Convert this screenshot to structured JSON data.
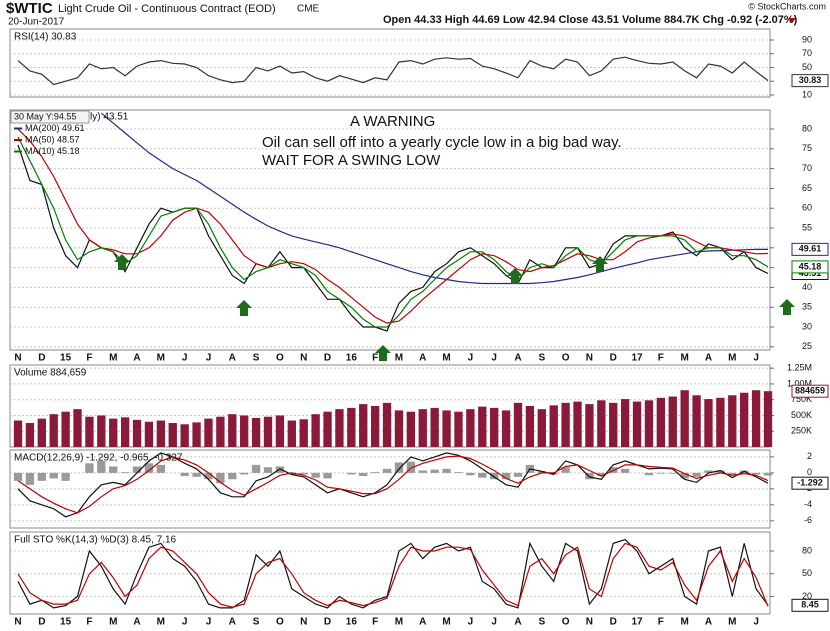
{
  "header": {
    "symbol": "$WTIC",
    "name": "Light Crude Oil - Continuous Contract (EOD)",
    "exchange": "CME",
    "date": "20-Jun-2017",
    "quote": "Open 44.33  High 44.69  Low 42.94  Close 43.51  Volume 884.7K  Chg -0.92 (-2.07%)",
    "credit": "© StockCharts.com"
  },
  "chart_data": [
    {
      "type": "line",
      "title": "RSI(14) 30.83",
      "color": "#333333",
      "label_last": true,
      "values": [
        60,
        45,
        40,
        25,
        30,
        35,
        55,
        48,
        50,
        38,
        52,
        58,
        60,
        56,
        55,
        50,
        38,
        32,
        28,
        30,
        50,
        45,
        52,
        42,
        44,
        35,
        30,
        38,
        33,
        28,
        35,
        32,
        58,
        60,
        55,
        62,
        64,
        62,
        63,
        52,
        48,
        42,
        35,
        60,
        52,
        48,
        62,
        58,
        38,
        45,
        62,
        65,
        60,
        56,
        55,
        58,
        45,
        35,
        55,
        52,
        42,
        58,
        44,
        30.83
      ],
      "ylim": [
        7,
        106
      ],
      "yticks": [
        90,
        70,
        50,
        30,
        10
      ],
      "grid": true
    },
    {
      "type": "line",
      "tooltip": "30 May Y:94.55",
      "annotations": [
        "A WARNING",
        "Oil can sell off into a yearly cycle low in a big bad way.",
        "WAIT FOR A SWING LOW"
      ],
      "categories": [
        "N",
        null,
        "D",
        null,
        "15",
        null,
        "F",
        null,
        "M",
        null,
        "A",
        null,
        "M",
        null,
        "J",
        null,
        "J",
        null,
        "A",
        null,
        "S",
        null,
        "O",
        null,
        "N",
        null,
        "D",
        null,
        "16",
        null,
        "F",
        null,
        "M",
        null,
        "A",
        null,
        "M",
        null,
        "J",
        null,
        "J",
        null,
        "A",
        null,
        "S",
        null,
        "O",
        null,
        "N",
        null,
        "D",
        null,
        "17",
        null,
        "F",
        null,
        "M",
        null,
        "A",
        null,
        "M",
        null,
        "J",
        null
      ],
      "series": [
        {
          "name": "ly) 43.51",
          "color": "#111111",
          "label_last": true,
          "values": [
            76,
            67,
            66,
            55,
            48,
            45,
            52,
            50,
            49,
            44,
            50,
            56,
            60,
            59,
            60,
            60,
            53,
            48,
            43,
            41,
            46,
            45,
            49,
            45,
            45,
            41,
            37,
            37,
            33,
            30,
            30,
            29,
            36,
            39,
            40,
            44,
            46,
            49,
            50,
            48,
            46,
            43,
            41,
            47,
            45,
            45,
            50,
            50,
            45,
            46,
            51,
            53,
            53,
            53,
            53,
            54,
            50,
            48,
            51,
            50,
            47,
            49,
            45,
            43.51
          ]
        },
        {
          "name": "MA(200) 49.61",
          "color": "#1f2a8c",
          "label_last": true,
          "values": [
            null,
            null,
            null,
            null,
            null,
            null,
            null,
            84,
            81.5,
            79,
            76.5,
            74,
            72,
            70,
            68.5,
            67,
            65,
            63,
            61,
            59,
            57.2,
            55.5,
            54.2,
            53,
            52.2,
            51.5,
            50.8,
            50,
            49,
            48,
            47,
            46,
            45,
            44,
            43.2,
            42.5,
            42,
            41.5,
            41.2,
            41,
            41,
            41,
            41,
            41,
            41.2,
            41.5,
            42,
            42.5,
            43.2,
            44,
            44.8,
            45.5,
            46.2,
            47,
            47.5,
            48,
            48.5,
            49,
            49.2,
            49.3,
            49.4,
            49.5,
            49.6,
            49.61
          ]
        },
        {
          "name": "MA(50) 48.57",
          "color": "#c00000",
          "values": [
            80,
            77,
            73,
            68,
            62,
            56,
            52,
            50,
            49.5,
            48.5,
            48.5,
            50,
            53,
            57,
            59,
            60,
            59,
            56,
            52,
            48,
            46,
            45,
            46,
            46.5,
            46,
            44.5,
            42,
            40,
            37.5,
            35,
            32.5,
            31,
            31.5,
            34,
            37,
            39.5,
            42,
            44.5,
            47,
            48.5,
            48,
            46.5,
            44.5,
            44,
            45,
            45.5,
            47,
            48.5,
            48,
            47,
            47,
            49,
            51.5,
            52.5,
            53,
            53.5,
            53,
            51.5,
            50,
            50,
            49.5,
            49,
            48.5,
            48.57
          ]
        },
        {
          "name": "MA(10) 45.18",
          "color": "#008000",
          "label_last": true,
          "values": [
            78,
            72,
            66,
            60,
            52,
            47,
            49,
            50,
            49,
            46,
            48,
            53,
            58,
            59,
            60,
            60,
            56,
            50,
            45,
            42,
            44,
            45,
            47,
            46,
            45,
            43,
            39,
            37,
            35,
            32,
            30,
            30,
            33,
            37,
            39,
            42,
            45,
            47,
            49,
            49,
            47,
            44,
            42,
            45,
            46,
            45,
            48,
            50,
            47,
            46,
            49,
            52,
            53,
            53,
            53,
            53,
            52,
            49,
            50,
            50,
            48,
            48,
            47,
            45.18
          ]
        }
      ],
      "ylim": [
        24.2,
        84.8
      ],
      "yticks": [
        25,
        30,
        35,
        40,
        45,
        50,
        55,
        60,
        65,
        70,
        75,
        80
      ],
      "grid": true
    },
    {
      "type": "bar",
      "title": "Volume 884,659",
      "color": "#8b1a3a",
      "label_last": true,
      "values": [
        420000,
        380000,
        450000,
        520000,
        560000,
        600000,
        480000,
        500000,
        450000,
        470000,
        430000,
        400000,
        420000,
        380000,
        360000,
        390000,
        450000,
        480000,
        520000,
        500000,
        460000,
        480000,
        500000,
        420000,
        440000,
        520000,
        560000,
        600000,
        620000,
        680000,
        650000,
        700000,
        580000,
        560000,
        600000,
        620000,
        580000,
        560000,
        600000,
        640000,
        620000,
        580000,
        700000,
        650000,
        600000,
        660000,
        700000,
        720000,
        680000,
        740000,
        700000,
        760000,
        720000,
        740000,
        780000,
        800000,
        900000,
        820000,
        760000,
        780000,
        820000,
        860000,
        900000,
        884659
      ],
      "ylim": [
        0,
        1300000
      ],
      "yticks": [
        {
          "value": 250000,
          "label": "250K"
        },
        {
          "value": 500000,
          "label": "500K"
        },
        {
          "value": 750000,
          "label": "750K"
        },
        {
          "value": 1000000,
          "label": "1.00M"
        },
        {
          "value": 1250000,
          "label": "1.25M"
        }
      ],
      "grid": true
    },
    {
      "type": "line",
      "title": "MACD(12,26,9) -1.292, -0.965, -0.327",
      "series": [
        {
          "type": "bar",
          "color": "#9a9a9a",
          "values": [
            -1,
            -1.5,
            -1,
            -0.7,
            -1,
            0,
            1.2,
            1.5,
            0.8,
            0.1,
            0.8,
            1.2,
            1,
            0,
            -0.4,
            -0.5,
            -0.8,
            -1.3,
            -0.8,
            -0.2,
            1,
            0.7,
            0.8,
            -0.2,
            -0.2,
            -0.6,
            -0.7,
            0,
            -0.2,
            -0.4,
            0.1,
            0.5,
            1.3,
            1.4,
            0.3,
            0.4,
            0.5,
            0.1,
            -0.3,
            -0.6,
            -0.8,
            -0.8,
            -0.5,
            1,
            0.2,
            -0.2,
            0.7,
            0,
            -0.8,
            -0.4,
            0.7,
            0.5,
            0,
            -0.3,
            -0.1,
            -0.1,
            -0.7,
            -0.5,
            0.3,
            0.3,
            -0.3,
            0.3,
            -0.2,
            -0.327
          ]
        },
        {
          "color": "#111111",
          "label_last": true,
          "values": [
            -2,
            -3.5,
            -4,
            -4.5,
            -5.5,
            -5,
            -3,
            -1.5,
            -1.2,
            -1.5,
            0,
            1.5,
            2.5,
            2,
            1.2,
            0.5,
            -0.8,
            -2.5,
            -3,
            -3,
            -1,
            -0.5,
            0.5,
            -0.2,
            -0.5,
            -1.5,
            -2.5,
            -2,
            -2.5,
            -3,
            -2.5,
            -1.5,
            0.5,
            2,
            1.5,
            2,
            2.5,
            2.2,
            1.5,
            0.5,
            -0.5,
            -1.5,
            -1.8,
            0.5,
            0.2,
            -0.2,
            1.5,
            1,
            -0.5,
            -0.8,
            1,
            1.5,
            1,
            0.5,
            0.6,
            0.5,
            -0.8,
            -1.2,
            0,
            0.3,
            -0.6,
            0.2,
            -0.5,
            -1.292
          ]
        },
        {
          "color": "#c00000",
          "values": [
            -1,
            -2,
            -3,
            -3.8,
            -4.5,
            -5,
            -4.2,
            -3,
            -2,
            -1.6,
            -0.8,
            0.3,
            1.5,
            2,
            1.6,
            1,
            0,
            -1.2,
            -2.2,
            -2.8,
            -2,
            -1.2,
            -0.3,
            0,
            -0.3,
            -0.9,
            -1.8,
            -2,
            -2.3,
            -2.6,
            -2.6,
            -2,
            -0.8,
            0.6,
            1.2,
            1.6,
            2,
            2.1,
            1.8,
            1.1,
            0.3,
            -0.7,
            -1.3,
            -0.5,
            0,
            0,
            0.8,
            1,
            0.3,
            -0.4,
            0.3,
            1,
            1,
            0.8,
            0.7,
            0.6,
            -0.1,
            -0.7,
            -0.3,
            0,
            -0.3,
            -0.1,
            -0.3,
            -0.965
          ]
        }
      ],
      "ylim": [
        -6.9,
        2.86
      ],
      "yticks": [
        2,
        0,
        -2,
        -4,
        -6
      ],
      "grid": true
    },
    {
      "type": "line",
      "title": "Full STO %K(14,3) %D(3) 8.45, 7.16",
      "categories": [
        "N",
        null,
        "D",
        null,
        "15",
        null,
        "F",
        null,
        "M",
        null,
        "A",
        null,
        "M",
        null,
        "J",
        null,
        "J",
        null,
        "A",
        null,
        "S",
        null,
        "O",
        null,
        "N",
        null,
        "D",
        null,
        "16",
        null,
        "F",
        null,
        "M",
        null,
        "A",
        null,
        "M",
        null,
        "J",
        null,
        "J",
        null,
        "A",
        null,
        "S",
        null,
        "O",
        null,
        "N",
        null,
        "D",
        null,
        "17",
        null,
        "F",
        null,
        "M",
        null,
        "A",
        null,
        "M",
        null,
        "J",
        null
      ],
      "series": [
        {
          "color": "#111111",
          "label_last": true,
          "values": [
            40,
            10,
            15,
            5,
            8,
            20,
            80,
            60,
            30,
            10,
            50,
            85,
            90,
            70,
            60,
            40,
            10,
            5,
            5,
            15,
            75,
            60,
            80,
            30,
            20,
            10,
            5,
            20,
            10,
            5,
            15,
            20,
            80,
            90,
            70,
            85,
            90,
            80,
            85,
            40,
            30,
            10,
            5,
            90,
            60,
            40,
            90,
            80,
            10,
            30,
            90,
            95,
            80,
            50,
            60,
            70,
            20,
            10,
            80,
            85,
            20,
            90,
            30,
            8.45
          ]
        },
        {
          "color": "#c00000",
          "values": [
            50,
            25,
            15,
            10,
            10,
            15,
            50,
            65,
            45,
            20,
            35,
            70,
            85,
            80,
            65,
            50,
            25,
            10,
            6,
            10,
            50,
            65,
            70,
            50,
            25,
            15,
            8,
            15,
            12,
            8,
            12,
            18,
            60,
            85,
            80,
            80,
            85,
            85,
            82,
            55,
            35,
            15,
            8,
            60,
            70,
            50,
            75,
            85,
            30,
            20,
            70,
            90,
            85,
            60,
            55,
            65,
            35,
            15,
            60,
            80,
            40,
            70,
            45,
            7.16
          ]
        }
      ],
      "ylim": [
        -3,
        105
      ],
      "yticks": [
        80,
        50,
        20
      ],
      "grid": true
    }
  ]
}
